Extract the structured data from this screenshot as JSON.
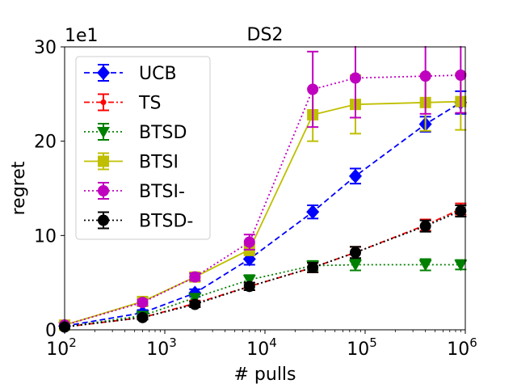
{
  "chart_data": {
    "type": "line",
    "title": "DS2",
    "xlabel": "# pulls",
    "ylabel": "regret",
    "xscale": "log",
    "xlim": [
      100,
      1000000
    ],
    "ylim": [
      0,
      30
    ],
    "y_multiplier_label": "1e1",
    "x_ticks": [
      {
        "value": 100,
        "base": "10",
        "exp": "2"
      },
      {
        "value": 1000,
        "base": "10",
        "exp": "3"
      },
      {
        "value": 10000,
        "base": "10",
        "exp": "4"
      },
      {
        "value": 100000,
        "base": "10",
        "exp": "5"
      },
      {
        "value": 1000000,
        "base": "10",
        "exp": "6"
      }
    ],
    "y_ticks": [
      {
        "value": 0,
        "label": "0"
      },
      {
        "value": 10,
        "label": "10"
      },
      {
        "value": 20,
        "label": "20"
      },
      {
        "value": 30,
        "label": "30"
      }
    ],
    "legend_position": "upper-left",
    "grid": false,
    "x": [
      100,
      600,
      2000,
      7000,
      30000,
      80000,
      400000,
      900000
    ],
    "series": [
      {
        "name": "UCB",
        "color": "#0000ff",
        "dash": "dashed",
        "marker": "diamond",
        "values": [
          0.4,
          1.8,
          3.9,
          7.5,
          12.5,
          16.3,
          21.8,
          24.1
        ],
        "errors": [
          0.1,
          0.3,
          0.4,
          0.6,
          0.7,
          0.8,
          0.8,
          1.2
        ]
      },
      {
        "name": "TS",
        "color": "#ff0000",
        "dash": "dashdot",
        "marker": "dot",
        "values": [
          0.3,
          1.3,
          2.8,
          4.6,
          6.6,
          8.2,
          11.1,
          12.8
        ],
        "errors": [
          0.1,
          0.2,
          0.3,
          0.4,
          0.5,
          0.6,
          0.6,
          0.6
        ]
      },
      {
        "name": "BTSD",
        "color": "#008000",
        "dash": "dotted",
        "marker": "triangle-down",
        "values": [
          0.3,
          1.5,
          3.4,
          5.3,
          6.8,
          6.9,
          6.9,
          6.9
        ],
        "errors": [
          0.1,
          0.2,
          0.4,
          0.5,
          0.5,
          0.6,
          0.6,
          0.5
        ]
      },
      {
        "name": "BTSI",
        "color": "#bfbf00",
        "dash": "solid",
        "marker": "square",
        "values": [
          0.5,
          3.0,
          5.6,
          8.5,
          22.8,
          23.9,
          24.1,
          24.2
        ],
        "errors": [
          0.1,
          0.3,
          0.4,
          0.6,
          2.8,
          3.1,
          3.0,
          3.0
        ]
      },
      {
        "name": "BTSI-",
        "color": "#bf00bf",
        "dash": "dotted",
        "marker": "circle",
        "values": [
          0.5,
          2.9,
          5.6,
          9.3,
          25.5,
          26.7,
          26.9,
          27.0
        ],
        "errors": [
          0.1,
          0.3,
          0.4,
          0.8,
          4.0,
          4.2,
          4.0,
          4.0
        ]
      },
      {
        "name": "BTSD-",
        "color": "#000000",
        "dash": "dotted",
        "marker": "circle",
        "values": [
          0.3,
          1.3,
          2.7,
          4.6,
          6.6,
          8.2,
          11.0,
          12.6
        ],
        "errors": [
          0.1,
          0.2,
          0.3,
          0.4,
          0.5,
          0.6,
          0.6,
          0.6
        ]
      }
    ]
  }
}
